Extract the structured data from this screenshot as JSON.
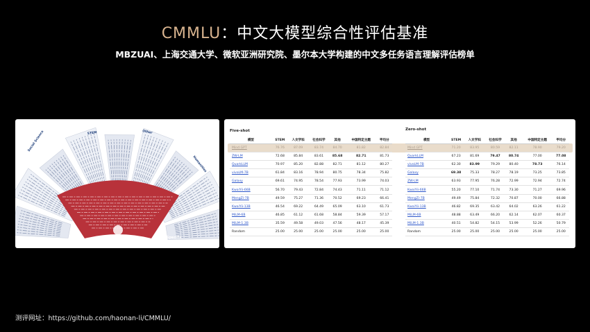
{
  "slide": {
    "title_highlight": "CMMLU",
    "title_rest": "：中文大模型综合性评估基准",
    "subtitle": "MBZUAI、上海交通大学、微软亚洲研究院、墨尔本大学构建的中文多任务语言理解评估榜单",
    "footer": "测评网址：https://github.com/haonan-li/CMMLU/"
  },
  "fan": {
    "labels": [
      "Social Science",
      "STEM",
      "Other",
      "Humanities",
      "China Specific"
    ],
    "colors": {
      "band": "#b8323a",
      "spokes": "#dfe3ec",
      "text_dark": "#1f3f7a"
    }
  },
  "five_shot": {
    "label": "Five-shot",
    "headers": [
      "模型",
      "STEM",
      "人文学科",
      "社会科学",
      "其他",
      "中国特定主题",
      "平均分"
    ],
    "rows": [
      [
        "Mind GPT",
        "76.76",
        "87.09",
        "83.74",
        "84.70",
        "81.82",
        "82.84"
      ],
      [
        "ZW-LM",
        "72.68",
        "85.84",
        "83.61",
        "85.68",
        "82.71",
        "81.73"
      ],
      [
        "QuarkLLM",
        "70.97",
        "85.20",
        "82.88",
        "82.71",
        "81.12",
        "80.27"
      ],
      [
        "vivoLM-7B",
        "61.84",
        "83.16",
        "78.94",
        "80.75",
        "78.34",
        "75.82"
      ],
      [
        "Galaxy",
        "69.61",
        "74.95",
        "78.54",
        "77.93",
        "73.99",
        "74.03"
      ],
      [
        "KwaiYii-66B",
        "56.70",
        "79.43",
        "72.84",
        "74.43",
        "71.11",
        "71.12"
      ],
      [
        "MengZi-7B",
        "49.59",
        "75.27",
        "71.36",
        "70.52",
        "69.23",
        "66.41"
      ],
      [
        "KwaiYii-13B",
        "46.54",
        "69.22",
        "64.49",
        "65.09",
        "63.10",
        "61.73"
      ],
      [
        "MiLM-6B",
        "46.85",
        "61.12",
        "61.68",
        "58.84",
        "59.39",
        "57.17"
      ],
      [
        "MiLM-1.3B",
        "35.59",
        "49.58",
        "49.03",
        "47.56",
        "48.17",
        "45.39"
      ],
      [
        "Random",
        "25.00",
        "25.00",
        "25.00",
        "25.00",
        "25.00",
        "25.00"
      ]
    ]
  },
  "zero_shot": {
    "label": "Zero-shot",
    "headers": [
      "模型",
      "STEM",
      "人文学科",
      "社会科学",
      "其他",
      "中国特定主题",
      "平均分"
    ],
    "rows": [
      [
        "Mind GPT",
        "71.20",
        "83.95",
        "80.59",
        "82.11",
        "78.90",
        "79.20"
      ],
      [
        "QuarkLLM",
        "67.23",
        "81.69",
        "79.47",
        "80.74",
        "77.00",
        "77.08"
      ],
      [
        "vivoLM-7B",
        "62.30",
        "83.99",
        "79.29",
        "80.40",
        "78.73",
        "76.14"
      ],
      [
        "Galaxy",
        "69.38",
        "75.33",
        "78.27",
        "78.19",
        "73.25",
        "73.85"
      ],
      [
        "ZW-LM",
        "63.93",
        "77.95",
        "76.28",
        "72.99",
        "72.94",
        "72.74"
      ],
      [
        "KwaiYii-66B",
        "55.20",
        "77.10",
        "71.74",
        "73.30",
        "71.27",
        "69.96"
      ],
      [
        "MengZi-7B",
        "49.49",
        "75.84",
        "72.32",
        "70.87",
        "70.00",
        "66.88"
      ],
      [
        "KwaiYii-13B",
        "46.82",
        "69.35",
        "63.42",
        "64.02",
        "63.26",
        "61.22"
      ],
      [
        "MiLM-6B",
        "48.88",
        "63.49",
        "66.20",
        "62.14",
        "62.07",
        "60.37"
      ],
      [
        "MiLM-1.3B",
        "40.51",
        "54.82",
        "54.15",
        "53.99",
        "52.26",
        "50.79"
      ],
      [
        "Random",
        "25.00",
        "25.00",
        "25.00",
        "25.00",
        "25.00",
        "25.00"
      ]
    ]
  }
}
